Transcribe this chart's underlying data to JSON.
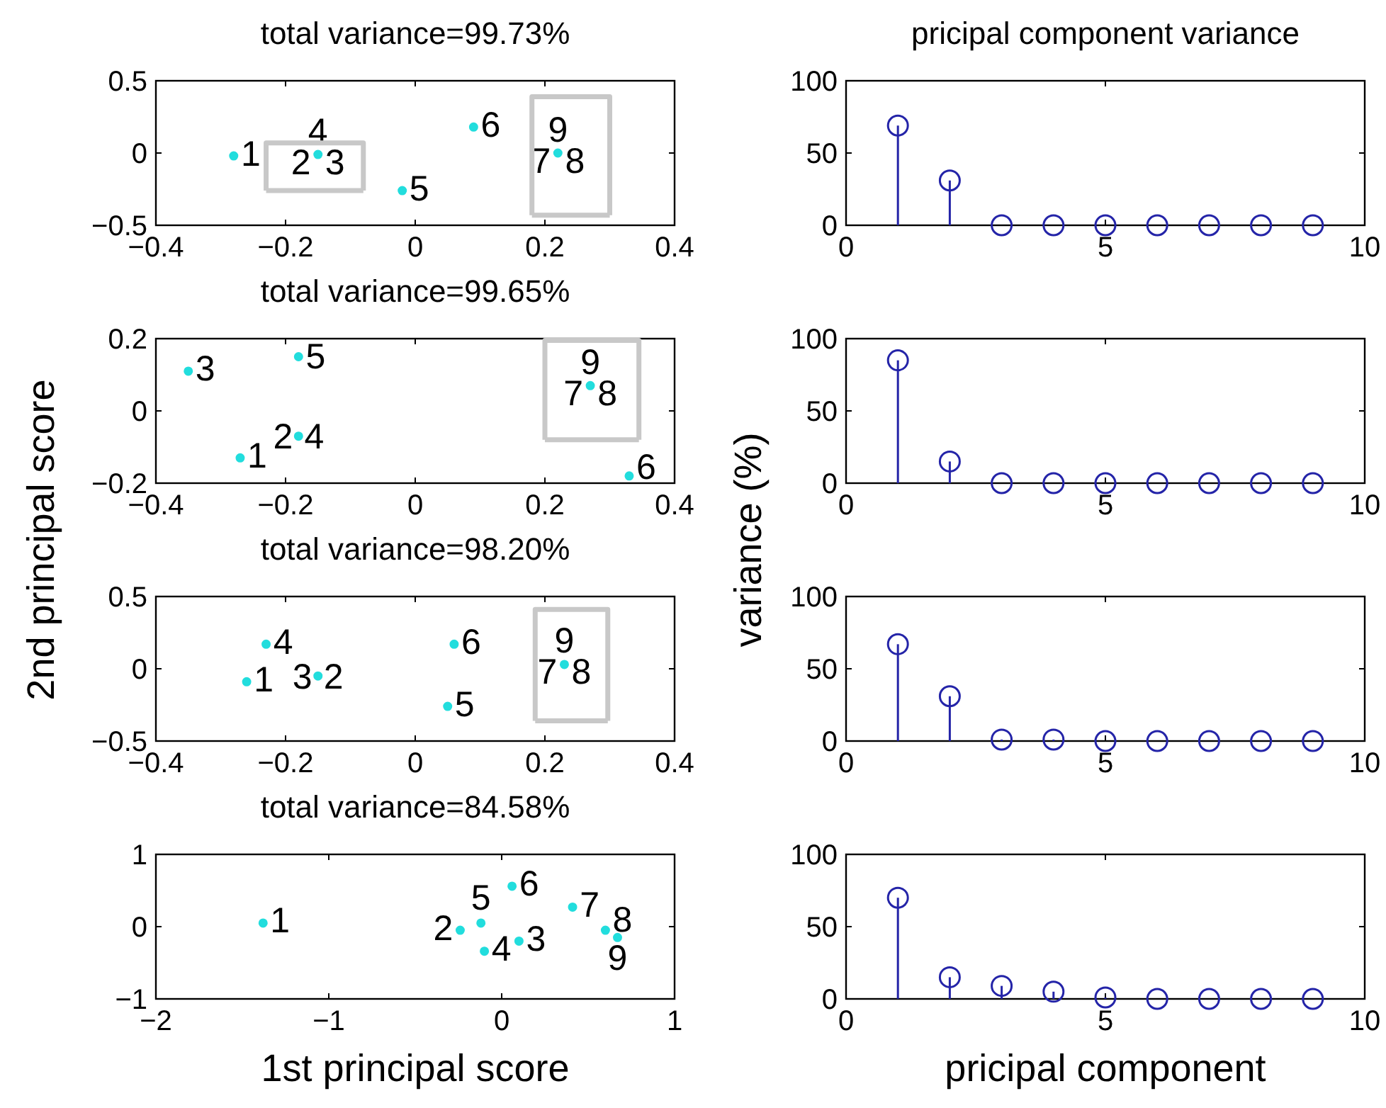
{
  "chart_data": [
    {
      "type": "scatter",
      "title": "total variance=99.73%",
      "xlim": [
        -0.4,
        0.4
      ],
      "xticks": [
        -0.4,
        -0.2,
        0,
        0.2,
        0.4
      ],
      "ylim": [
        -0.5,
        0.5
      ],
      "yticks": [
        -0.5,
        0,
        0.5
      ],
      "marker": "circle",
      "series": [
        {
          "color": "#22dddd",
          "x": [
            -0.28,
            -0.15,
            -0.02,
            0.09,
            0.22
          ],
          "values": [
            -0.02,
            -0.01,
            -0.26,
            0.18,
            0
          ]
        },
        {
          "type": "line",
          "marker": "none",
          "color": "#c8c8c8",
          "x": [
            -0.23,
            -0.23,
            -0.08,
            -0.08
          ],
          "values": [
            -0.26,
            0.07,
            0.07,
            -0.26
          ]
        },
        {
          "type": "line",
          "marker": "none",
          "color": "#c8c8c8",
          "x": [
            -0.23,
            -0.08
          ],
          "values": [
            -0.26,
            -0.26
          ]
        },
        {
          "type": "line",
          "marker": "none",
          "color": "#c8c8c8",
          "x": [
            0.18,
            0.18,
            0.3,
            0.3
          ],
          "values": [
            -0.43,
            0.39,
            0.39,
            -0.43
          ]
        },
        {
          "type": "line",
          "marker": "none",
          "color": "#c8c8c8",
          "x": [
            0.18,
            0.3
          ],
          "values": [
            -0.43,
            -0.43
          ]
        }
      ],
      "annotations": [
        {
          "text": "1",
          "x": -0.28,
          "y": -0.02
        },
        {
          "text": "2",
          "x": -0.15,
          "y": -0.01
        },
        {
          "text": "3",
          "x": -0.15,
          "y": -0.01
        },
        {
          "text": "4",
          "x": -0.15,
          "y": -0.01
        },
        {
          "text": "5",
          "x": -0.02,
          "y": -0.26
        },
        {
          "text": "6",
          "x": 0.09,
          "y": 0.18
        },
        {
          "text": "7",
          "x": 0.22,
          "y": 0
        },
        {
          "text": "8",
          "x": 0.22,
          "y": 0
        },
        {
          "text": "9",
          "x": 0.22,
          "y": 0
        }
      ]
    },
    {
      "type": "lollipop",
      "title": "pricipal component variance",
      "xlim": [
        0,
        10
      ],
      "xticks": [
        0,
        5,
        10
      ],
      "ylim": [
        0,
        100
      ],
      "yticks": [
        0,
        50,
        100
      ],
      "marker": "circle",
      "color": "#2424a8",
      "x": [
        1,
        2,
        3,
        4,
        5,
        6,
        7,
        8,
        9
      ],
      "values": [
        69,
        31,
        0,
        0,
        0,
        0,
        0,
        0,
        0
      ]
    },
    {
      "type": "scatter",
      "title": "total variance=99.65%",
      "ylabel": "2nd principal score",
      "xlim": [
        -0.4,
        0.4
      ],
      "xticks": [
        -0.4,
        -0.2,
        0,
        0.2,
        0.4
      ],
      "ylim": [
        -0.2,
        0.2
      ],
      "yticks": [
        -0.2,
        0,
        0.2
      ],
      "marker": "circle",
      "series": [
        {
          "color": "#22dddd",
          "x": [
            -0.35,
            -0.18,
            -0.18,
            -0.27,
            0.27,
            0.33
          ],
          "values": [
            0.11,
            0.15,
            -0.07,
            -0.13,
            0.07,
            -0.18
          ]
        },
        {
          "type": "line",
          "marker": "none",
          "color": "#c8c8c8",
          "x": [
            0.2,
            0.2,
            0.345,
            0.345
          ],
          "values": [
            -0.08,
            0.195,
            0.195,
            -0.08
          ]
        },
        {
          "type": "line",
          "marker": "none",
          "color": "#c8c8c8",
          "x": [
            0.2,
            0.345
          ],
          "values": [
            -0.08,
            -0.08
          ]
        }
      ],
      "annotations": [
        {
          "text": "1",
          "x": -0.27,
          "y": -0.13
        },
        {
          "text": "2",
          "x": -0.18,
          "y": -0.07
        },
        {
          "text": "3",
          "x": -0.35,
          "y": 0.11
        },
        {
          "text": "4",
          "x": -0.18,
          "y": -0.07
        },
        {
          "text": "5",
          "x": -0.18,
          "y": 0.15
        },
        {
          "text": "6",
          "x": 0.33,
          "y": -0.18
        },
        {
          "text": "7",
          "x": 0.27,
          "y": 0.07
        },
        {
          "text": "8",
          "x": 0.27,
          "y": 0.07
        },
        {
          "text": "9",
          "x": 0.27,
          "y": 0.07
        }
      ]
    },
    {
      "type": "lollipop",
      "ylabel": "variance (%)",
      "xlim": [
        0,
        10
      ],
      "xticks": [
        0,
        5,
        10
      ],
      "ylim": [
        0,
        100
      ],
      "yticks": [
        0,
        50,
        100
      ],
      "marker": "circle",
      "color": "#2424a8",
      "x": [
        1,
        2,
        3,
        4,
        5,
        6,
        7,
        8,
        9
      ],
      "values": [
        85,
        15,
        0,
        0,
        0,
        0,
        0,
        0,
        0
      ]
    },
    {
      "type": "scatter",
      "title": "total variance=98.20%",
      "xlim": [
        -0.4,
        0.4
      ],
      "xticks": [
        -0.4,
        -0.2,
        0,
        0.2,
        0.4
      ],
      "ylim": [
        -0.5,
        0.5
      ],
      "yticks": [
        -0.5,
        0,
        0.5
      ],
      "marker": "circle",
      "series": [
        {
          "color": "#22dddd",
          "x": [
            -0.26,
            -0.23,
            -0.15,
            0.06,
            0.05,
            0.23
          ],
          "values": [
            -0.09,
            0.17,
            -0.05,
            0.17,
            -0.26,
            0.03
          ]
        },
        {
          "type": "line",
          "marker": "none",
          "color": "#c8c8c8",
          "x": [
            0.185,
            0.185,
            0.297,
            0.297
          ],
          "values": [
            -0.36,
            0.41,
            0.41,
            -0.36
          ]
        },
        {
          "type": "line",
          "marker": "none",
          "color": "#c8c8c8",
          "x": [
            0.185,
            0.297
          ],
          "values": [
            -0.36,
            -0.36
          ]
        }
      ],
      "annotations": [
        {
          "text": "1",
          "x": -0.26,
          "y": -0.09
        },
        {
          "text": "3",
          "x": -0.15,
          "y": -0.05
        },
        {
          "text": "2",
          "x": -0.15,
          "y": -0.05
        },
        {
          "text": "4",
          "x": -0.23,
          "y": 0.17
        },
        {
          "text": "5",
          "x": 0.05,
          "y": -0.26
        },
        {
          "text": "6",
          "x": 0.06,
          "y": 0.17
        },
        {
          "text": "7",
          "x": 0.23,
          "y": 0.03
        },
        {
          "text": "8",
          "x": 0.23,
          "y": 0.03
        },
        {
          "text": "9",
          "x": 0.23,
          "y": 0.03
        }
      ]
    },
    {
      "type": "lollipop",
      "xlim": [
        0,
        10
      ],
      "xticks": [
        0,
        5,
        10
      ],
      "ylim": [
        0,
        100
      ],
      "yticks": [
        0,
        50,
        100
      ],
      "marker": "circle",
      "color": "#2424a8",
      "x": [
        1,
        2,
        3,
        4,
        5,
        6,
        7,
        8,
        9
      ],
      "values": [
        67,
        31,
        1,
        1,
        0,
        0,
        0,
        0,
        0
      ]
    },
    {
      "type": "scatter",
      "title": "total variance=84.58%",
      "xlabel": "1st principal score",
      "xlim": [
        -2,
        1
      ],
      "xticks": [
        -2,
        -1,
        0,
        1
      ],
      "ylim": [
        -1,
        1
      ],
      "yticks": [
        -1,
        0,
        1
      ],
      "marker": "circle",
      "series": [
        {
          "color": "#22dddd",
          "x": [
            -1.38,
            -0.24,
            0.1,
            -0.1,
            -0.12,
            0.06,
            0.41,
            0.6,
            0.67
          ],
          "values": [
            0.05,
            -0.05,
            -0.2,
            -0.34,
            0.05,
            0.56,
            0.27,
            -0.05,
            -0.15
          ]
        }
      ],
      "annotations": [
        {
          "text": "1",
          "x": -1.38,
          "y": 0.05
        },
        {
          "text": "2",
          "x": -0.24,
          "y": -0.05
        },
        {
          "text": "3",
          "x": 0.1,
          "y": -0.2
        },
        {
          "text": "4",
          "x": -0.1,
          "y": -0.34
        },
        {
          "text": "5",
          "x": -0.12,
          "y": 0.05
        },
        {
          "text": "6",
          "x": 0.06,
          "y": 0.56
        },
        {
          "text": "7",
          "x": 0.41,
          "y": 0.27
        },
        {
          "text": "8",
          "x": 0.6,
          "y": -0.05
        },
        {
          "text": "9",
          "x": 0.67,
          "y": -0.15
        }
      ]
    },
    {
      "type": "lollipop",
      "xlabel": "pricipal component",
      "xlim": [
        0,
        10
      ],
      "xticks": [
        0,
        5,
        10
      ],
      "ylim": [
        0,
        100
      ],
      "yticks": [
        0,
        50,
        100
      ],
      "marker": "circle",
      "color": "#2424a8",
      "x": [
        1,
        2,
        3,
        4,
        5,
        6,
        7,
        8,
        9
      ],
      "values": [
        70,
        15,
        9,
        5,
        1,
        0,
        0,
        0,
        0
      ]
    }
  ]
}
